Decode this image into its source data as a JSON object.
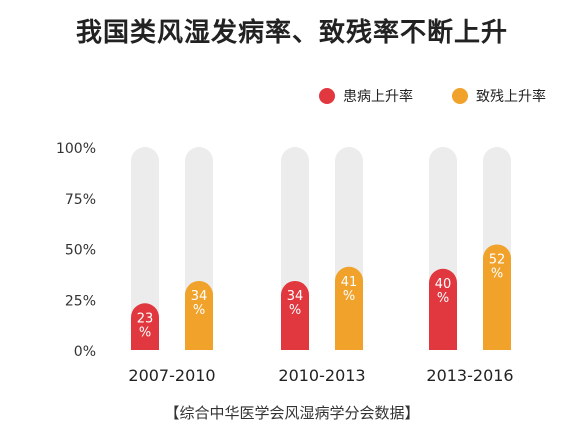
{
  "title": "我国类风湿发病率、致残率不断上升",
  "footer": "【综合中华医学会风湿病学分会数据】",
  "colors": {
    "incidence": "#e0383e",
    "disability": "#f0a22a",
    "track": "#ececec"
  },
  "chart_data": {
    "type": "bar",
    "categories": [
      "2007-2010",
      "2010-2013",
      "2013-2016"
    ],
    "series": [
      {
        "name": "患病上升率",
        "values": [
          23,
          34,
          40
        ],
        "labels": [
          "23\n%",
          "34\n%",
          "40\n%"
        ]
      },
      {
        "name": "致残上升率",
        "values": [
          34,
          41,
          52
        ],
        "labels": [
          "34\n%",
          "41\n%",
          "52\n%"
        ]
      }
    ],
    "yticks": [
      "0%",
      "25%",
      "50%",
      "75%",
      "100%"
    ],
    "ylim": [
      0,
      100
    ],
    "legend": "top-right",
    "grid": false
  }
}
